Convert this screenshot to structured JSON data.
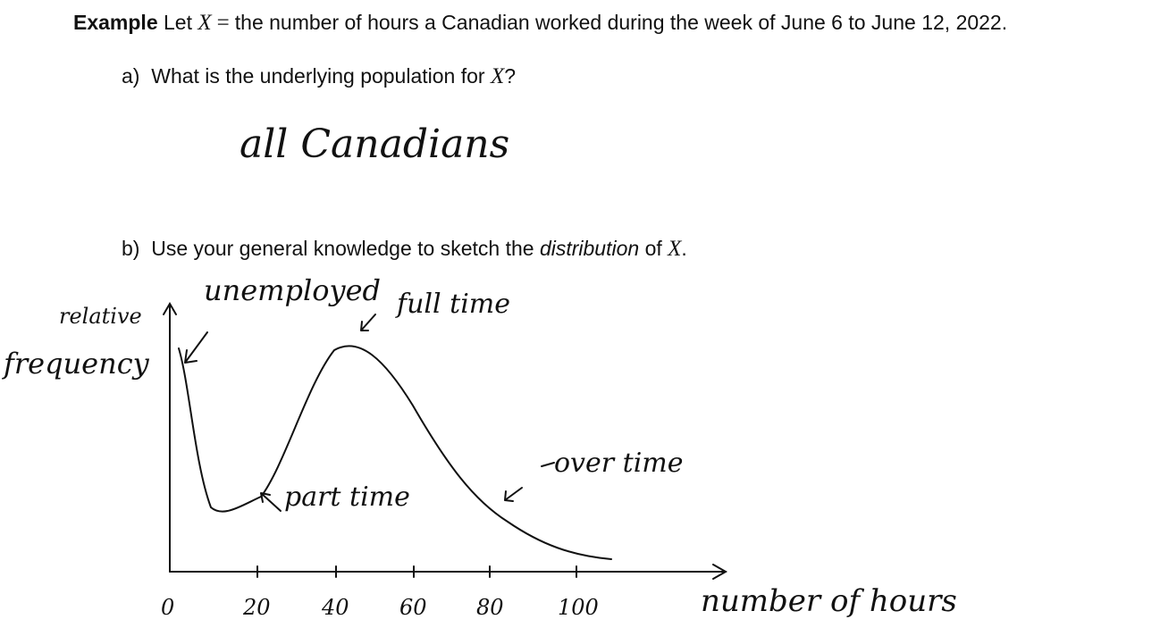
{
  "example": {
    "label": "Example",
    "let_word": "Let",
    "variable": "X",
    "equals": "=",
    "definition": "the number of hours a Canadian worked during the week of June 6 to June 12, 2022."
  },
  "part_a": {
    "marker": "a)",
    "question_text": "What is the underlying population for",
    "variable": "X",
    "question_end": "?",
    "answer": "all Canadians"
  },
  "part_b": {
    "marker": "b)",
    "text_before": "Use your general knowledge to sketch the",
    "emphasis": "distribution",
    "text_after": "of",
    "variable": "X",
    "end": "."
  },
  "sketch": {
    "y_label_line1": "relative",
    "y_label_line2": "frequency",
    "x_label": "number of hours",
    "annotations": {
      "unemployed": "unemployed",
      "full_time": "full time",
      "part_time": "part time",
      "over_time": "over time"
    },
    "x_ticks": [
      "0",
      "20",
      "40",
      "60",
      "80",
      "100"
    ]
  }
}
